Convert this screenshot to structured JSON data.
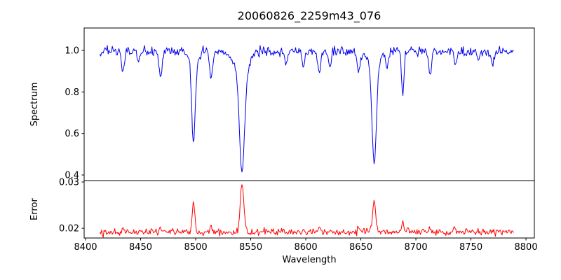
{
  "title": "20060826_2259m43_076",
  "colors": {
    "spectrum_line": "#0000ee",
    "error_line": "#ff0000",
    "axis": "#000000",
    "background": "#ffffff"
  },
  "chart_data": {
    "type": "line",
    "title": "20060826_2259m43_076",
    "xlabel": "Wavelength",
    "xlim": [
      8398.7,
      8807.6
    ],
    "xticks": [
      8400,
      8450,
      8500,
      8550,
      8600,
      8650,
      8700,
      8750,
      8800
    ],
    "xtick_labels": [
      "8400",
      "8450",
      "8500",
      "8550",
      "8600",
      "8650",
      "8700",
      "8750",
      "8800"
    ],
    "x_start": 8413,
    "x_end": 8789,
    "x_step": 0.75,
    "grid": false,
    "legend": "none",
    "noise_seed": 42,
    "panels": [
      {
        "name": "spectrum",
        "ylabel": "Spectrum",
        "ylim": [
          0.373,
          1.108
        ],
        "yticks": [
          0.4,
          0.6,
          0.8,
          1.0
        ],
        "ytick_labels": [
          "0.4",
          "0.6",
          "0.8",
          "1.0"
        ],
        "line_color": "#0000ee",
        "model": {
          "kind": "continuum_minus_gaussian_absorption",
          "continuum": 0.995,
          "noise_sigma": 0.012,
          "absorption_lines": [
            {
              "center": 8434.0,
              "depth": 0.1,
              "sigma": 1.3
            },
            {
              "center": 8448.0,
              "depth": 0.05,
              "sigma": 1.1
            },
            {
              "center": 8468.0,
              "depth": 0.13,
              "sigma": 1.4
            },
            {
              "center": 8498.0,
              "depth": 0.4,
              "sigma": 1.6
            },
            {
              "center": 8498.0,
              "depth": 0.04,
              "sigma": 4.0
            },
            {
              "center": 8514.0,
              "depth": 0.13,
              "sigma": 1.4
            },
            {
              "center": 8542.1,
              "depth": 0.48,
              "sigma": 2.3
            },
            {
              "center": 8542.1,
              "depth": 0.1,
              "sigma": 6.5
            },
            {
              "center": 8582.0,
              "depth": 0.06,
              "sigma": 1.2
            },
            {
              "center": 8598.0,
              "depth": 0.07,
              "sigma": 1.2
            },
            {
              "center": 8612.0,
              "depth": 0.11,
              "sigma": 1.3
            },
            {
              "center": 8622.0,
              "depth": 0.08,
              "sigma": 1.2
            },
            {
              "center": 8648.0,
              "depth": 0.1,
              "sigma": 1.3
            },
            {
              "center": 8662.1,
              "depth": 0.47,
              "sigma": 2.0
            },
            {
              "center": 8662.1,
              "depth": 0.07,
              "sigma": 5.0
            },
            {
              "center": 8674.0,
              "depth": 0.08,
              "sigma": 1.2
            },
            {
              "center": 8688.0,
              "depth": 0.21,
              "sigma": 1.1
            },
            {
              "center": 8713.0,
              "depth": 0.12,
              "sigma": 1.3
            },
            {
              "center": 8736.0,
              "depth": 0.07,
              "sigma": 1.2
            },
            {
              "center": 8757.0,
              "depth": 0.05,
              "sigma": 1.1
            },
            {
              "center": 8770.0,
              "depth": 0.07,
              "sigma": 1.2
            }
          ]
        }
      },
      {
        "name": "error",
        "ylabel": "Error",
        "ylim": [
          0.0179,
          0.0303
        ],
        "yticks": [
          0.02,
          0.03
        ],
        "ytick_labels": [
          "0.02",
          "0.03"
        ],
        "line_color": "#ff0000",
        "model": {
          "kind": "baseline_plus_gaussian_peaks",
          "baseline": 0.0192,
          "noise_sigma": 0.00035,
          "peaks": [
            {
              "center": 8434.0,
              "amp": 0.0008,
              "sigma": 1.0
            },
            {
              "center": 8468.0,
              "amp": 0.0012,
              "sigma": 1.0
            },
            {
              "center": 8498.0,
              "amp": 0.0063,
              "sigma": 1.2
            },
            {
              "center": 8514.0,
              "amp": 0.0012,
              "sigma": 1.0
            },
            {
              "center": 8542.1,
              "amp": 0.0106,
              "sigma": 1.6
            },
            {
              "center": 8612.0,
              "amp": 0.001,
              "sigma": 1.0
            },
            {
              "center": 8648.0,
              "amp": 0.0009,
              "sigma": 1.0
            },
            {
              "center": 8662.1,
              "amp": 0.0068,
              "sigma": 1.4
            },
            {
              "center": 8688.0,
              "amp": 0.0022,
              "sigma": 1.0
            },
            {
              "center": 8713.0,
              "amp": 0.001,
              "sigma": 1.0
            },
            {
              "center": 8736.0,
              "amp": 0.0007,
              "sigma": 1.0
            }
          ]
        }
      }
    ]
  }
}
